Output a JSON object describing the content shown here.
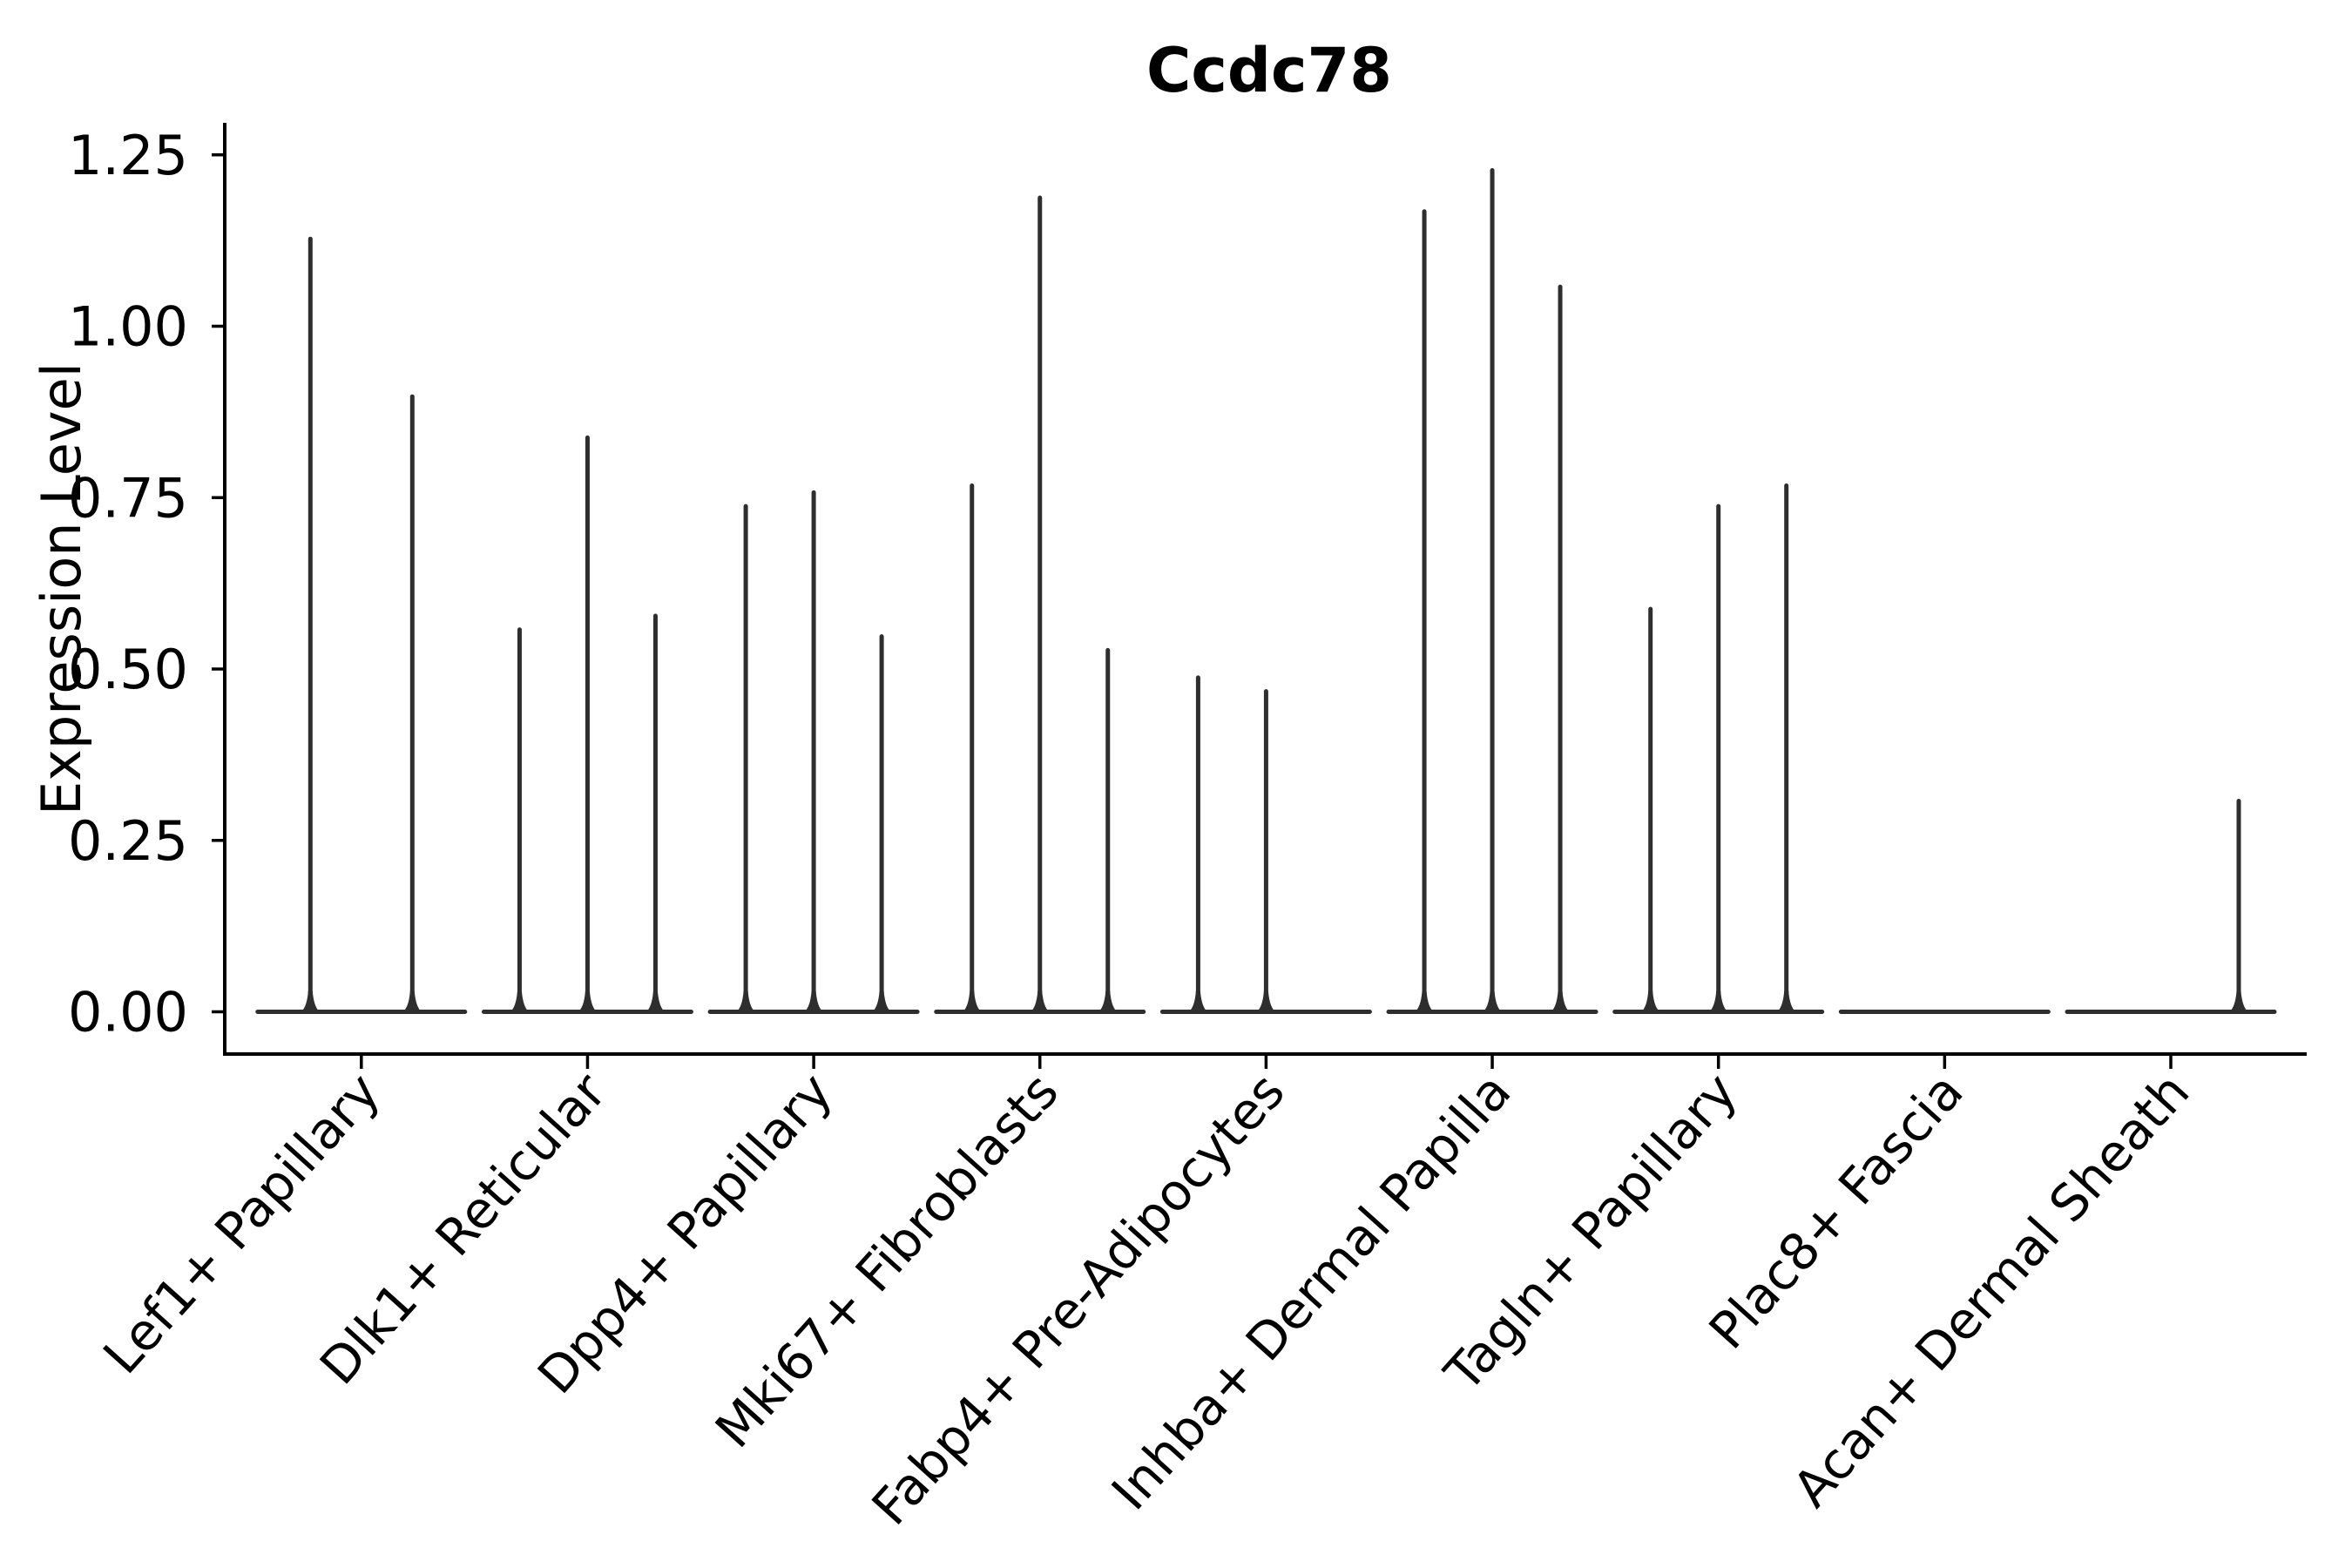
{
  "chart_data": {
    "type": "violin",
    "title": "Ccdc78",
    "ylabel": "Expression Level",
    "xlabel": "",
    "ylim": [
      -0.06,
      1.29
    ],
    "yticks": [
      {
        "value": 0.0,
        "label": "0.00"
      },
      {
        "value": 0.25,
        "label": "0.25"
      },
      {
        "value": 0.5,
        "label": "0.50"
      },
      {
        "value": 0.75,
        "label": "0.75"
      },
      {
        "value": 1.0,
        "label": "1.00"
      },
      {
        "value": 1.25,
        "label": "1.25"
      }
    ],
    "grid": false,
    "legend": "none",
    "violin_color": "#2e2e2e",
    "axis_color": "#000000",
    "categories": [
      "Lef1+ Papillary",
      "Dlk1+ Reticular",
      "Dpp4+ Papillary",
      "Mki67+ Fibroblasts",
      "Fabp4+ Pre-Adipocytes",
      "Inhba+ Dermal Papilla",
      "Tagln+ Papillary",
      "Plac8+ Fascia",
      "Acan+ Dermal Sheath"
    ],
    "series": [
      {
        "category": "Lef1+ Papillary",
        "spikes": [
          {
            "slot": -0.75,
            "peak": 1.13
          },
          {
            "slot": 0.75,
            "peak": 0.9
          }
        ]
      },
      {
        "category": "Dlk1+ Reticular",
        "spikes": [
          {
            "slot": -1,
            "peak": 0.56
          },
          {
            "slot": 0,
            "peak": 0.84
          },
          {
            "slot": 1,
            "peak": 0.58
          }
        ]
      },
      {
        "category": "Dpp4+ Papillary",
        "spikes": [
          {
            "slot": -1,
            "peak": 0.74
          },
          {
            "slot": 0,
            "peak": 0.76
          },
          {
            "slot": 1,
            "peak": 0.55
          }
        ]
      },
      {
        "category": "Mki67+ Fibroblasts",
        "spikes": [
          {
            "slot": -1,
            "peak": 0.77
          },
          {
            "slot": 0,
            "peak": 1.19
          },
          {
            "slot": 1,
            "peak": 0.53
          }
        ]
      },
      {
        "category": "Fabp4+ Pre-Adipocytes",
        "spikes": [
          {
            "slot": -1,
            "peak": 0.49
          },
          {
            "slot": 0,
            "peak": 0.47
          }
        ]
      },
      {
        "category": "Inhba+ Dermal Papilla",
        "spikes": [
          {
            "slot": -1,
            "peak": 1.17
          },
          {
            "slot": 0,
            "peak": 1.23
          },
          {
            "slot": 1,
            "peak": 1.06
          }
        ]
      },
      {
        "category": "Tagln+ Papillary",
        "spikes": [
          {
            "slot": -1,
            "peak": 0.59
          },
          {
            "slot": 0,
            "peak": 0.74
          },
          {
            "slot": 1,
            "peak": 0.77
          }
        ]
      },
      {
        "category": "Plac8+ Fascia",
        "spikes": []
      },
      {
        "category": "Acan+ Dermal Sheath",
        "spikes": [
          {
            "slot": 1,
            "peak": 0.31
          }
        ]
      }
    ]
  }
}
